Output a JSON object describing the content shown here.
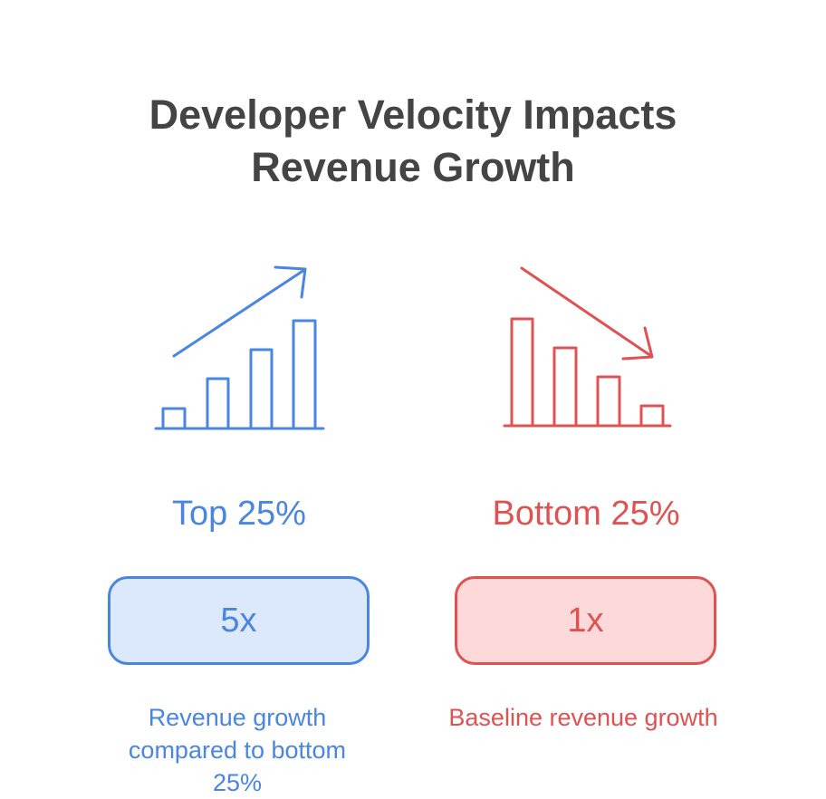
{
  "title": "Developer Velocity Impacts Revenue Growth",
  "columns": [
    {
      "label": "Top 25%",
      "value": "5x",
      "description": "Revenue growth compared to bottom 25%"
    },
    {
      "label": "Bottom 25%",
      "value": "1x",
      "description": "Baseline revenue growth"
    }
  ]
}
